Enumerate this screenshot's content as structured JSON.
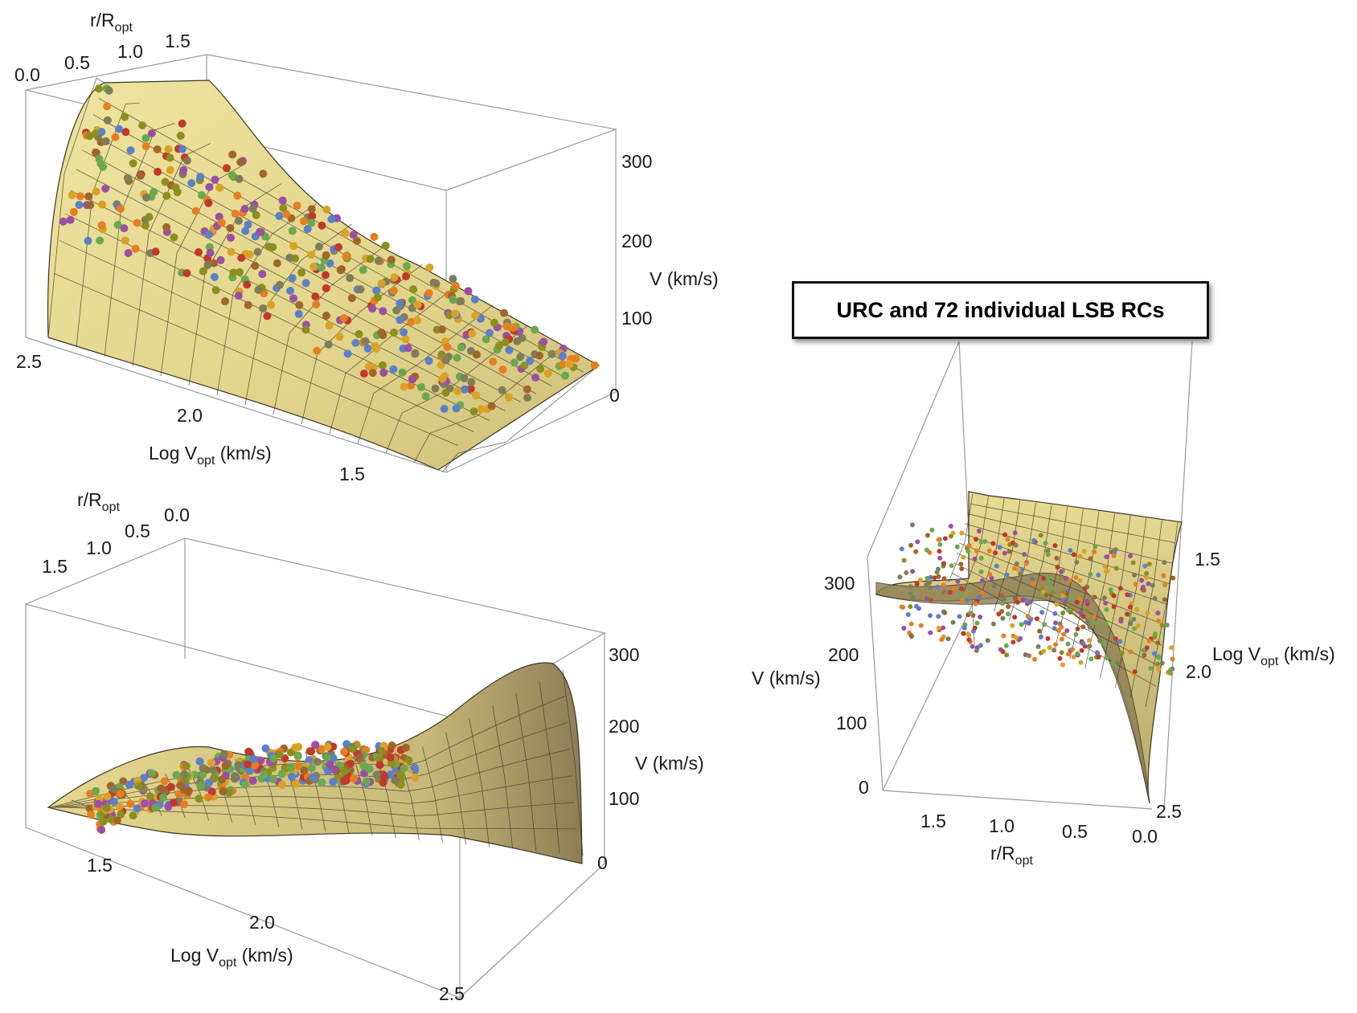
{
  "figure": {
    "title": "URC and 72 individual LSB RCs"
  },
  "colors": {
    "surface": "#e6d98e",
    "surface_dark": "#8d7d55",
    "mesh": "#3a3526",
    "box_edge": "#9a9a9a",
    "points": [
      "#5b7fc9",
      "#d9a227",
      "#9a4fa5",
      "#6aa84f",
      "#c0392b",
      "#e67e22",
      "#8a8f1f",
      "#a0652a",
      "#7d7d5a"
    ]
  },
  "chart_data": [
    {
      "type": "scatter",
      "subtype": "3d-surface-with-points",
      "title": "",
      "axes": {
        "r": {
          "label": "r/R",
          "label_sub": "opt",
          "ticks": [
            "0.0",
            "0.5",
            "1.0",
            "1.5"
          ],
          "range": [
            0,
            1.7
          ]
        },
        "logv": {
          "label": "Log V",
          "label_sub": "opt",
          "label_unit": " (km/s)",
          "ticks": [
            "2.5",
            "2.0",
            "1.5"
          ],
          "range": [
            1.3,
            2.6
          ]
        },
        "v": {
          "label": "V (km/s)",
          "ticks": [
            "0",
            "100",
            "200",
            "300"
          ],
          "range": [
            0,
            340
          ]
        }
      }
    },
    {
      "type": "scatter",
      "subtype": "3d-surface-with-points",
      "title": "",
      "axes": {
        "r": {
          "label": "r/R",
          "label_sub": "opt",
          "ticks": [
            "0.0",
            "0.5",
            "1.0",
            "1.5"
          ],
          "range": [
            0,
            1.7
          ]
        },
        "logv": {
          "label": "Log V",
          "label_sub": "opt",
          "label_unit": " (km/s)",
          "ticks": [
            "1.5",
            "2.0",
            "2.5"
          ],
          "range": [
            1.3,
            2.6
          ]
        },
        "v": {
          "label": "V (km/s)",
          "ticks": [
            "0",
            "100",
            "200",
            "300"
          ],
          "range": [
            0,
            340
          ]
        }
      }
    },
    {
      "type": "scatter",
      "subtype": "3d-surface-with-points",
      "title": "URC and 72 individual LSB RCs",
      "axes": {
        "r": {
          "label": "r/R",
          "label_sub": "opt",
          "ticks": [
            "1.5",
            "1.0",
            "0.5",
            "0.0"
          ],
          "range": [
            0,
            1.7
          ]
        },
        "logv": {
          "label": "Log V",
          "label_sub": "opt",
          "label_unit": " (km/s)",
          "ticks": [
            "2.5",
            "2.0",
            "1.5"
          ],
          "range": [
            1.3,
            2.6
          ]
        },
        "v": {
          "label": "V (km/s)",
          "ticks": [
            "0",
            "100",
            "200",
            "300"
          ],
          "range": [
            0,
            340
          ]
        }
      }
    }
  ]
}
